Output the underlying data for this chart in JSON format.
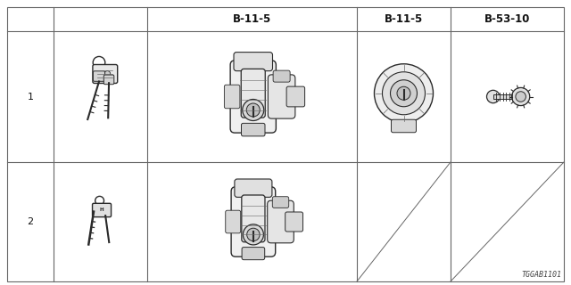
{
  "bg_color": "#ffffff",
  "line_color": "#666666",
  "text_color": "#111111",
  "diagram_id": "TGGAB1101",
  "header_labels": [
    "B-11-5",
    "B-11-5",
    "B-53-10"
  ],
  "row_numbers": [
    "1",
    "2"
  ],
  "header_fontsize": 8.5,
  "label_fontsize": 8,
  "diagram_id_fontsize": 6
}
